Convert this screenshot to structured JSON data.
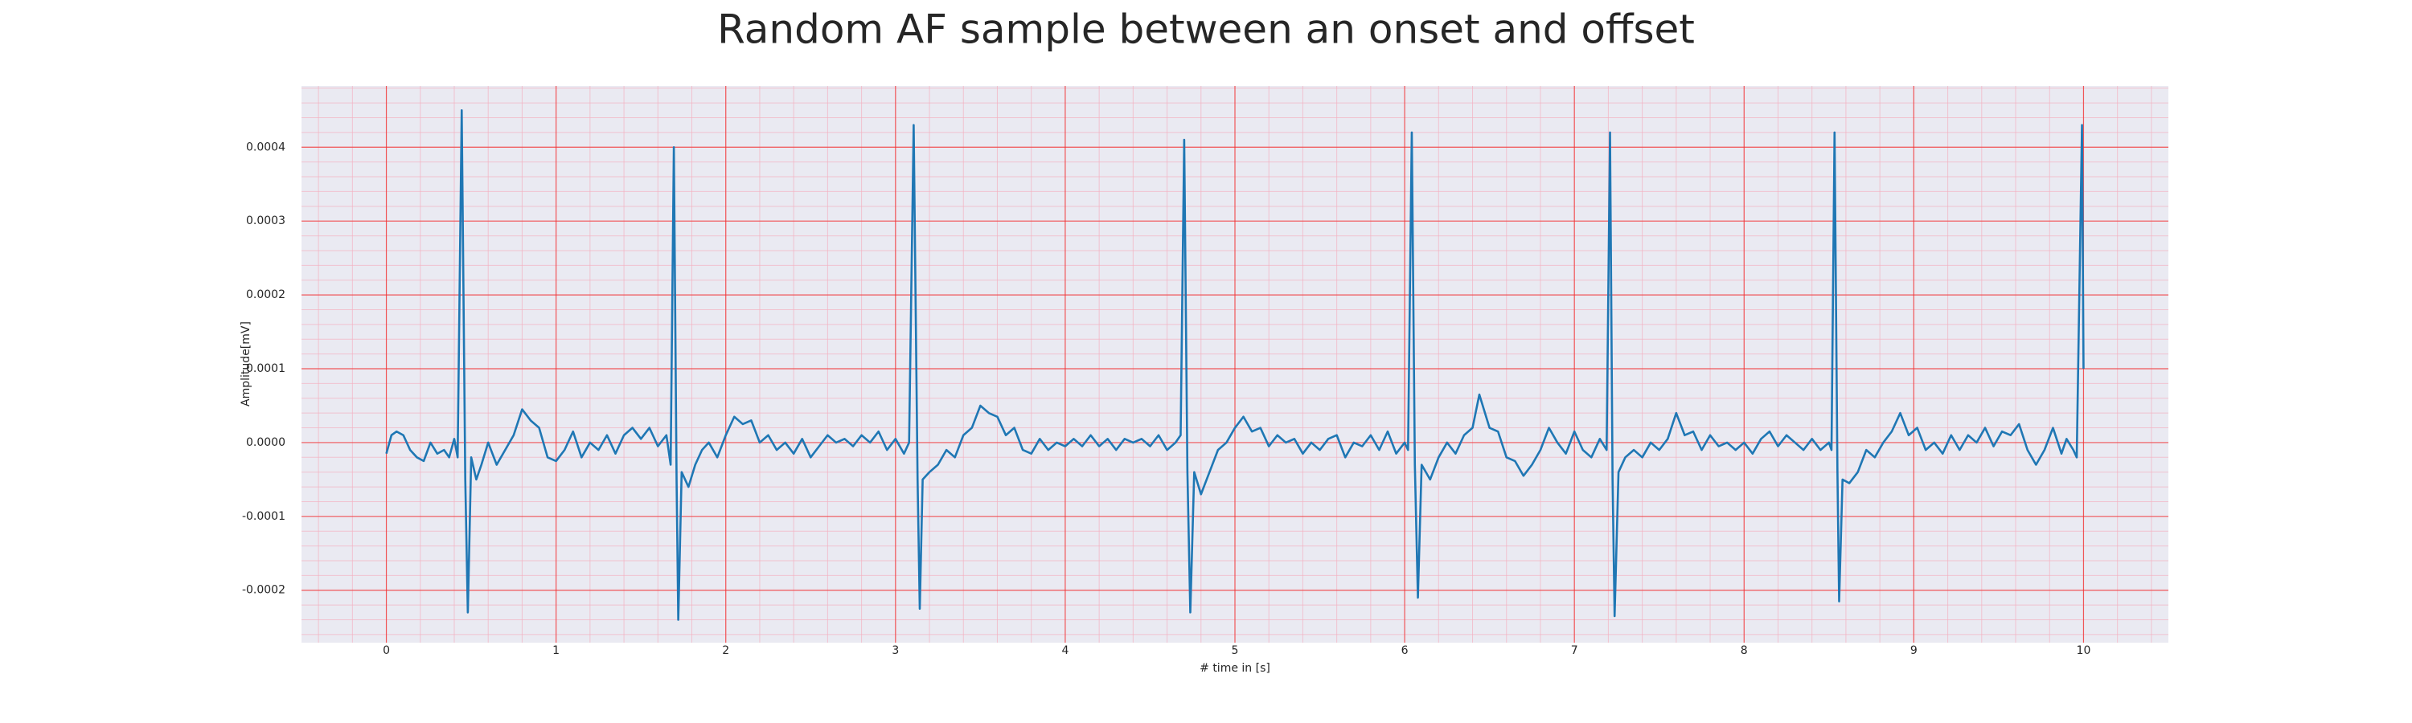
{
  "chart_data": {
    "type": "line",
    "title": "Random AF sample between an onset and offset",
    "xlabel": "# time in [s]",
    "ylabel": "Amplitude[mV]",
    "color": "#1f77b4",
    "grid": true,
    "minor_grid": true,
    "xlim": [
      -0.5,
      10.5
    ],
    "ylim": [
      -0.000271,
      0.000483
    ],
    "xticks": [
      0,
      1,
      2,
      3,
      4,
      5,
      6,
      7,
      8,
      9,
      10
    ],
    "yticks": [
      {
        "value": -0.0002,
        "label": "-0.0002"
      },
      {
        "value": -0.0001,
        "label": "-0.0001"
      },
      {
        "value": 0,
        "label": "0.0000"
      },
      {
        "value": 0.0001,
        "label": "0.0001"
      },
      {
        "value": 0.0002,
        "label": "0.0002"
      },
      {
        "value": 0.0003,
        "label": "0.0003"
      },
      {
        "value": 0.0004,
        "label": "0.0004"
      }
    ],
    "x": [
      0,
      0.03,
      0.06,
      0.1,
      0.14,
      0.18,
      0.22,
      0.26,
      0.3,
      0.34,
      0.37,
      0.4,
      0.42,
      0.444,
      0.465,
      0.48,
      0.5,
      0.53,
      0.56,
      0.6,
      0.65,
      0.7,
      0.75,
      0.8,
      0.85,
      0.9,
      0.95,
      1.0,
      1.05,
      1.1,
      1.15,
      1.2,
      1.25,
      1.3,
      1.35,
      1.4,
      1.45,
      1.5,
      1.55,
      1.6,
      1.65,
      1.675,
      1.694,
      1.71,
      1.72,
      1.74,
      1.78,
      1.82,
      1.86,
      1.9,
      1.95,
      2.0,
      2.05,
      2.1,
      2.15,
      2.2,
      2.25,
      2.3,
      2.35,
      2.4,
      2.45,
      2.5,
      2.55,
      2.6,
      2.65,
      2.7,
      2.75,
      2.8,
      2.85,
      2.9,
      2.95,
      3.0,
      3.05,
      3.08,
      3.107,
      3.13,
      3.143,
      3.16,
      3.2,
      3.25,
      3.3,
      3.35,
      3.4,
      3.45,
      3.5,
      3.55,
      3.6,
      3.65,
      3.7,
      3.75,
      3.8,
      3.85,
      3.9,
      3.95,
      4.0,
      4.05,
      4.1,
      4.15,
      4.2,
      4.25,
      4.3,
      4.35,
      4.4,
      4.45,
      4.5,
      4.55,
      4.6,
      4.65,
      4.68,
      4.701,
      4.72,
      4.737,
      4.76,
      4.8,
      4.85,
      4.9,
      4.95,
      5.0,
      5.05,
      5.1,
      5.15,
      5.2,
      5.25,
      5.3,
      5.35,
      5.4,
      5.45,
      5.5,
      5.55,
      5.6,
      5.65,
      5.7,
      5.75,
      5.8,
      5.85,
      5.9,
      5.95,
      6.0,
      6.02,
      6.042,
      6.06,
      6.078,
      6.1,
      6.15,
      6.2,
      6.25,
      6.3,
      6.35,
      6.4,
      6.44,
      6.5,
      6.55,
      6.6,
      6.65,
      6.7,
      6.75,
      6.8,
      6.85,
      6.9,
      6.95,
      7.0,
      7.05,
      7.1,
      7.15,
      7.19,
      7.21,
      7.225,
      7.237,
      7.26,
      7.3,
      7.35,
      7.4,
      7.45,
      7.5,
      7.55,
      7.6,
      7.65,
      7.7,
      7.75,
      7.8,
      7.85,
      7.9,
      7.95,
      8.0,
      8.05,
      8.1,
      8.15,
      8.2,
      8.25,
      8.3,
      8.35,
      8.4,
      8.45,
      8.5,
      8.515,
      8.533,
      8.55,
      8.56,
      8.58,
      8.62,
      8.67,
      8.72,
      8.77,
      8.82,
      8.87,
      8.92,
      8.97,
      9.02,
      9.07,
      9.12,
      9.17,
      9.22,
      9.27,
      9.32,
      9.37,
      9.42,
      9.47,
      9.52,
      9.57,
      9.62,
      9.67,
      9.72,
      9.77,
      9.82,
      9.87,
      9.9,
      9.94,
      9.96,
      9.991,
      10.0
    ],
    "values": [
      -1.5e-05,
      1e-05,
      1.5e-05,
      1e-05,
      -1e-05,
      -2e-05,
      -2.5e-05,
      0,
      -1.5e-05,
      -1e-05,
      -2e-05,
      5e-06,
      -2e-05,
      0.00045,
      -5e-05,
      -0.00023,
      -2e-05,
      -5e-05,
      -3e-05,
      0,
      -3e-05,
      -1e-05,
      1e-05,
      4.5e-05,
      3e-05,
      2e-05,
      -2e-05,
      -2.5e-05,
      -1e-05,
      1.5e-05,
      -2e-05,
      0,
      -1e-05,
      1e-05,
      -1.5e-05,
      1e-05,
      2e-05,
      5e-06,
      2e-05,
      -5e-06,
      1e-05,
      -3e-05,
      0.0004,
      -5e-05,
      -0.00024,
      -4e-05,
      -6e-05,
      -3e-05,
      -1e-05,
      0,
      -2e-05,
      1e-05,
      3.5e-05,
      2.5e-05,
      3e-05,
      0,
      1e-05,
      -1e-05,
      0,
      -1.5e-05,
      5e-06,
      -2e-05,
      -5e-06,
      1e-05,
      0,
      5e-06,
      -5e-06,
      1e-05,
      0,
      1.5e-05,
      -1e-05,
      5e-06,
      -1.5e-05,
      0,
      0.00043,
      -5e-05,
      -0.000225,
      -5e-05,
      -4e-05,
      -3e-05,
      -1e-05,
      -2e-05,
      1e-05,
      2e-05,
      5e-05,
      4e-05,
      3.5e-05,
      1e-05,
      2e-05,
      -1e-05,
      -1.5e-05,
      5e-06,
      -1e-05,
      0,
      -5e-06,
      5e-06,
      -5e-06,
      1e-05,
      -5e-06,
      5e-06,
      -1e-05,
      5e-06,
      0,
      5e-06,
      -5e-06,
      1e-05,
      -1e-05,
      0,
      1e-05,
      0.00041,
      -4e-05,
      -0.00023,
      -4e-05,
      -7e-05,
      -4e-05,
      -1e-05,
      0,
      2e-05,
      3.5e-05,
      1.5e-05,
      2e-05,
      -5e-06,
      1e-05,
      0,
      5e-06,
      -1.5e-05,
      0,
      -1e-05,
      5e-06,
      1e-05,
      -2e-05,
      0,
      -5e-06,
      1e-05,
      -1e-05,
      1.5e-05,
      -1.5e-05,
      0,
      -1e-05,
      0.00042,
      -3e-05,
      -0.00021,
      -3e-05,
      -5e-05,
      -2e-05,
      0,
      -1.5e-05,
      1e-05,
      2e-05,
      6.5e-05,
      2e-05,
      1.5e-05,
      -2e-05,
      -2.5e-05,
      -4.5e-05,
      -3e-05,
      -1e-05,
      2e-05,
      0,
      -1.5e-05,
      1.5e-05,
      -1e-05,
      -2e-05,
      5e-06,
      -1e-05,
      0.00042,
      -5e-05,
      -0.000235,
      -4e-05,
      -2e-05,
      -1e-05,
      -2e-05,
      0,
      -1e-05,
      5e-06,
      4e-05,
      1e-05,
      1.5e-05,
      -1e-05,
      1e-05,
      -5e-06,
      0,
      -1e-05,
      0,
      -1.5e-05,
      5e-06,
      1.5e-05,
      -5e-06,
      1e-05,
      0,
      -1e-05,
      5e-06,
      -1e-05,
      0,
      -1e-05,
      0.00042,
      -4e-05,
      -0.000215,
      -5e-05,
      -5.5e-05,
      -4e-05,
      -1e-05,
      -2e-05,
      0,
      1.5e-05,
      4e-05,
      1e-05,
      2e-05,
      -1e-05,
      0,
      -1.5e-05,
      1e-05,
      -1e-05,
      1e-05,
      0,
      2e-05,
      -5e-06,
      1.5e-05,
      1e-05,
      2.5e-05,
      -1e-05,
      -3e-05,
      -1e-05,
      2e-05,
      -1.5e-05,
      5e-06,
      -1e-05,
      -2e-05,
      0.00043,
      0.0001
    ]
  }
}
